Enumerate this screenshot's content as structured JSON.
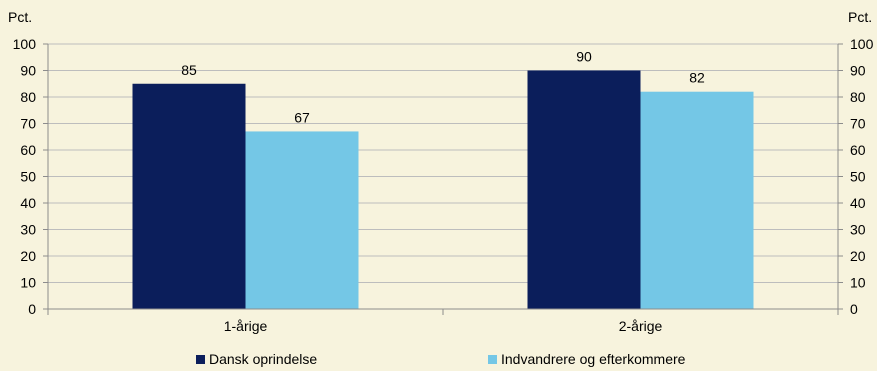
{
  "chart_data": {
    "type": "bar",
    "unit_left": "Pct.",
    "unit_right": "Pct.",
    "ylim": [
      0,
      100
    ],
    "yticks": [
      0,
      10,
      20,
      30,
      40,
      50,
      60,
      70,
      80,
      90,
      100
    ],
    "categories": [
      "1-årige",
      "2-årige"
    ],
    "series": [
      {
        "name": "Dansk oprindelse",
        "color": "#0b1e5b",
        "values": [
          85,
          90
        ]
      },
      {
        "name": "Indvandrere og efterkommere",
        "color": "#74c7e6",
        "values": [
          67,
          82
        ]
      }
    ],
    "grid": true,
    "legend": "bottom",
    "data_labels": true
  }
}
